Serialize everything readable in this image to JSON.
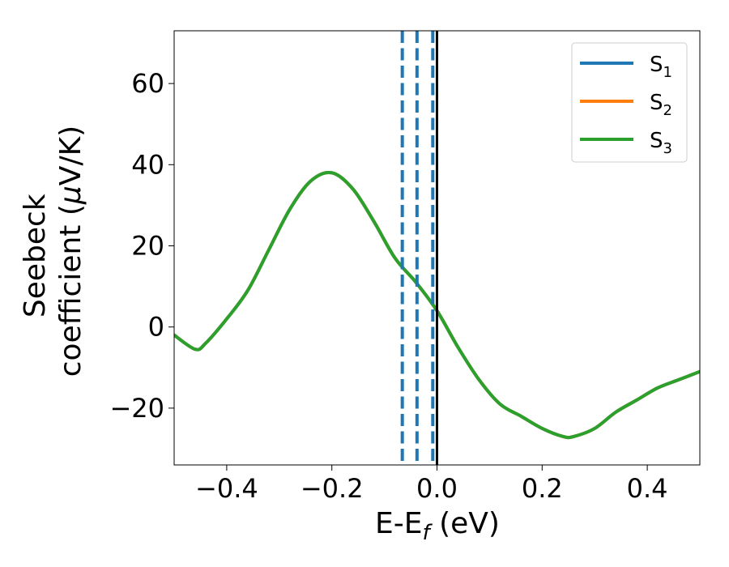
{
  "chart_data": {
    "type": "line",
    "xlabel_main": "E-E",
    "xlabel_sub": "f",
    "xlabel_unit": " (eV)",
    "ylabel_line1": "Seebeck",
    "ylabel_line2_pre": "coefficient  (",
    "ylabel_mu": "μ",
    "ylabel_line2_post": "V/K)",
    "xlim": [
      -0.5,
      0.5
    ],
    "ylim": [
      -34,
      73
    ],
    "xticks": [
      {
        "value": -0.4,
        "label": "−0.4"
      },
      {
        "value": -0.2,
        "label": "−0.2"
      },
      {
        "value": 0.0,
        "label": "0.0"
      },
      {
        "value": 0.2,
        "label": "0.2"
      },
      {
        "value": 0.4,
        "label": "0.4"
      }
    ],
    "yticks": [
      {
        "value": -20,
        "label": "−20"
      },
      {
        "value": 0,
        "label": "0"
      },
      {
        "value": 20,
        "label": "20"
      },
      {
        "value": 40,
        "label": "40"
      },
      {
        "value": 60,
        "label": "60"
      }
    ],
    "grid": false,
    "legend_position": "top-right",
    "series": [
      {
        "name_main": "S",
        "name_sub": "1",
        "color": "#1f77b4",
        "x": [
          -0.5,
          -0.46,
          -0.44,
          -0.4,
          -0.36,
          -0.32,
          -0.28,
          -0.24,
          -0.2,
          -0.16,
          -0.12,
          -0.08,
          -0.04,
          0.0,
          0.04,
          0.08,
          0.12,
          0.16,
          0.2,
          0.24,
          0.26,
          0.3,
          0.34,
          0.38,
          0.42,
          0.46,
          0.5
        ],
        "y": [
          -2,
          -5.5,
          -4,
          2,
          9,
          19,
          29,
          36,
          38,
          34,
          26,
          17,
          11,
          4,
          -5,
          -13,
          -19,
          -22,
          -25,
          -27,
          -27,
          -25,
          -21,
          -18,
          -15,
          -13,
          -11
        ]
      },
      {
        "name_main": "S",
        "name_sub": "2",
        "color": "#ff7f0e",
        "x": [
          -0.5,
          -0.46,
          -0.44,
          -0.4,
          -0.36,
          -0.32,
          -0.28,
          -0.24,
          -0.2,
          -0.16,
          -0.12,
          -0.08,
          -0.04,
          0.0,
          0.04,
          0.08,
          0.12,
          0.16,
          0.2,
          0.24,
          0.26,
          0.3,
          0.34,
          0.38,
          0.42,
          0.46,
          0.5
        ],
        "y": [
          -2,
          -5.5,
          -4,
          2,
          9,
          19,
          29,
          36,
          38,
          34,
          26,
          17,
          11,
          4,
          -5,
          -13,
          -19,
          -22,
          -25,
          -27,
          -27,
          -25,
          -21,
          -18,
          -15,
          -13,
          -11
        ]
      },
      {
        "name_main": "S",
        "name_sub": "3",
        "color": "#2ca02c",
        "x": [
          -0.5,
          -0.46,
          -0.44,
          -0.4,
          -0.36,
          -0.32,
          -0.28,
          -0.24,
          -0.2,
          -0.16,
          -0.12,
          -0.08,
          -0.04,
          0.0,
          0.04,
          0.08,
          0.12,
          0.16,
          0.2,
          0.24,
          0.26,
          0.3,
          0.34,
          0.38,
          0.42,
          0.46,
          0.5
        ],
        "y": [
          -2,
          -5.5,
          -4,
          2,
          9,
          19,
          29,
          36,
          38,
          34,
          26,
          17,
          11,
          4,
          -5,
          -13,
          -19,
          -22,
          -25,
          -27,
          -27,
          -25,
          -21,
          -18,
          -15,
          -13,
          -11
        ]
      }
    ],
    "vlines": [
      {
        "x": -0.066,
        "style": "dashed",
        "color": "#1f77b4"
      },
      {
        "x": -0.038,
        "style": "dashed",
        "color": "#1f77b4"
      },
      {
        "x": -0.008,
        "style": "dashed",
        "color": "#1f77b4"
      },
      {
        "x": 0.0,
        "style": "solid",
        "color": "#000000"
      }
    ]
  }
}
